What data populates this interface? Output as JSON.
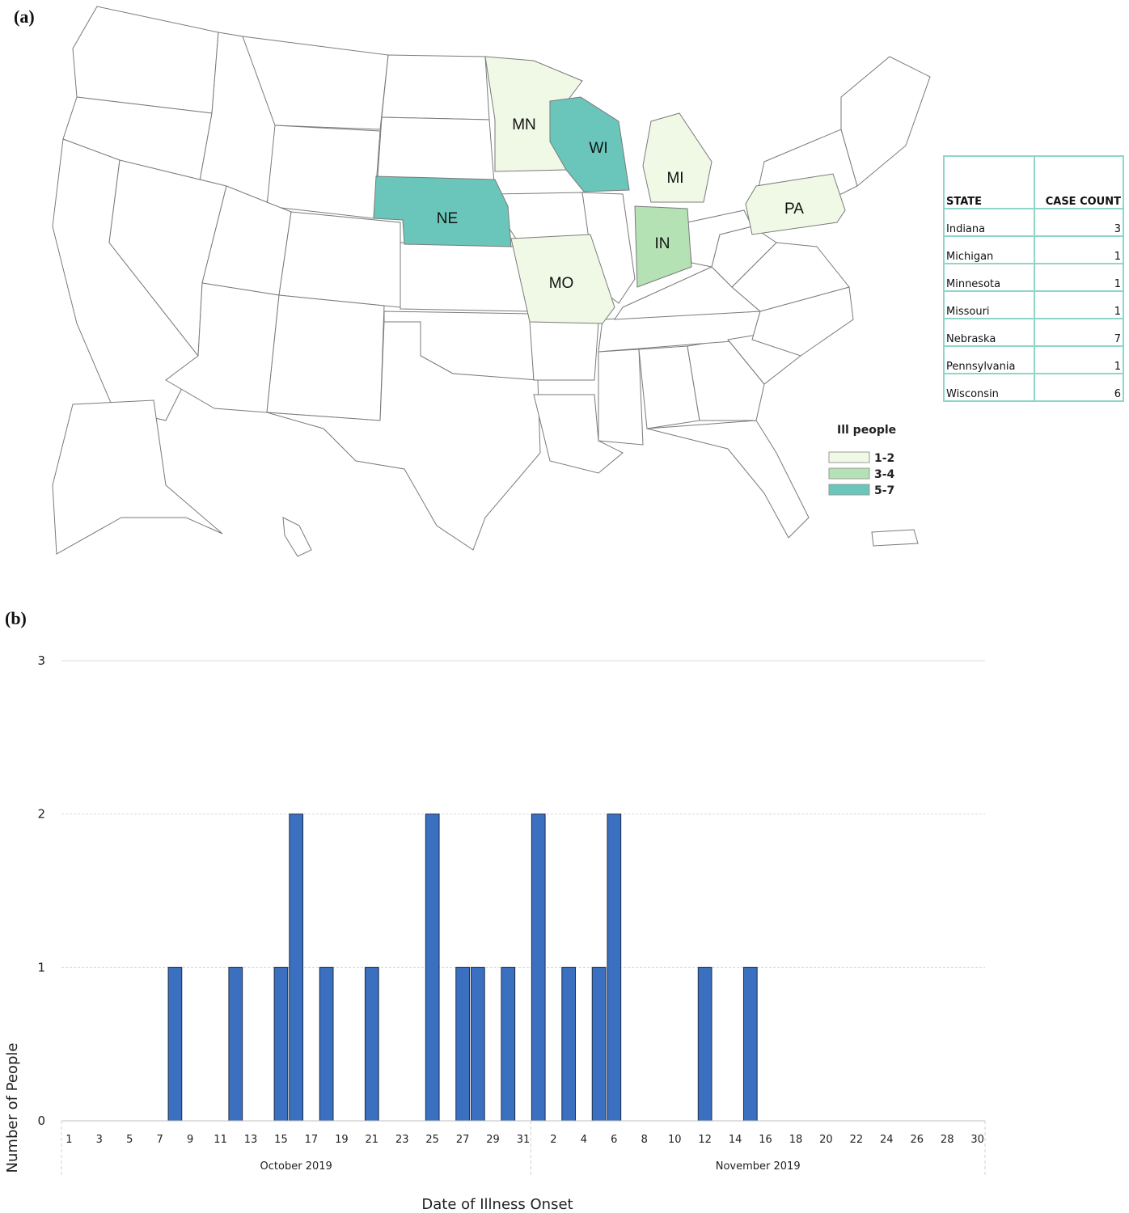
{
  "panels": {
    "a": "(a)",
    "b": "(b)"
  },
  "colors": {
    "range_1_2": "#f0f9e6",
    "range_3_4": "#b5e2b5",
    "range_5_7": "#6ac6ba",
    "bar": "#3b6fc0",
    "table_border": "#8fd6c9"
  },
  "map": {
    "states": [
      {
        "abbr": "MN",
        "name": "Minnesota",
        "range": "1-2"
      },
      {
        "abbr": "WI",
        "name": "Wisconsin",
        "range": "5-7"
      },
      {
        "abbr": "MI",
        "name": "Michigan",
        "range": "1-2"
      },
      {
        "abbr": "NE",
        "name": "Nebraska",
        "range": "5-7"
      },
      {
        "abbr": "MO",
        "name": "Missouri",
        "range": "1-2"
      },
      {
        "abbr": "IN",
        "name": "Indiana",
        "range": "3-4"
      },
      {
        "abbr": "PA",
        "name": "Pennsylvania",
        "range": "1-2"
      }
    ],
    "legend": {
      "title": "Ill people",
      "items": [
        {
          "label": "1-2",
          "color": "#f0f9e6"
        },
        {
          "label": "3-4",
          "color": "#b5e2b5"
        },
        {
          "label": "5-7",
          "color": "#6ac6ba"
        }
      ]
    }
  },
  "table": {
    "headers": [
      "STATE",
      "CASE COUNT"
    ],
    "rows": [
      [
        "Indiana",
        "3"
      ],
      [
        "Michigan",
        "1"
      ],
      [
        "Minnesota",
        "1"
      ],
      [
        "Missouri",
        "1"
      ],
      [
        "Nebraska",
        "7"
      ],
      [
        "Pennsylvania",
        "1"
      ],
      [
        "Wisconsin",
        "6"
      ]
    ]
  },
  "chart_data": {
    "type": "bar",
    "xlabel": "Date of Illness Onset",
    "ylabel": "Number of People",
    "ylim": [
      0,
      3
    ],
    "yticks": [
      0,
      1,
      2,
      3
    ],
    "grid": true,
    "month_groups": [
      {
        "label": "October 2019",
        "days": 31
      },
      {
        "label": "November 2019",
        "days": 30
      }
    ],
    "x_tick_labels": [
      "1",
      "3",
      "5",
      "7",
      "9",
      "11",
      "13",
      "15",
      "17",
      "19",
      "21",
      "23",
      "25",
      "27",
      "29",
      "31",
      "2",
      "4",
      "6",
      "8",
      "10",
      "12",
      "14",
      "16",
      "18",
      "20",
      "22",
      "24",
      "26",
      "28",
      "30"
    ],
    "x": [
      "2019-10-08",
      "2019-10-12",
      "2019-10-15",
      "2019-10-16",
      "2019-10-18",
      "2019-10-21",
      "2019-10-25",
      "2019-10-27",
      "2019-10-28",
      "2019-10-30",
      "2019-11-01",
      "2019-11-03",
      "2019-11-05",
      "2019-11-06",
      "2019-11-12",
      "2019-11-15"
    ],
    "values": [
      1,
      1,
      1,
      2,
      1,
      1,
      2,
      1,
      1,
      1,
      2,
      1,
      1,
      2,
      1,
      1
    ]
  }
}
